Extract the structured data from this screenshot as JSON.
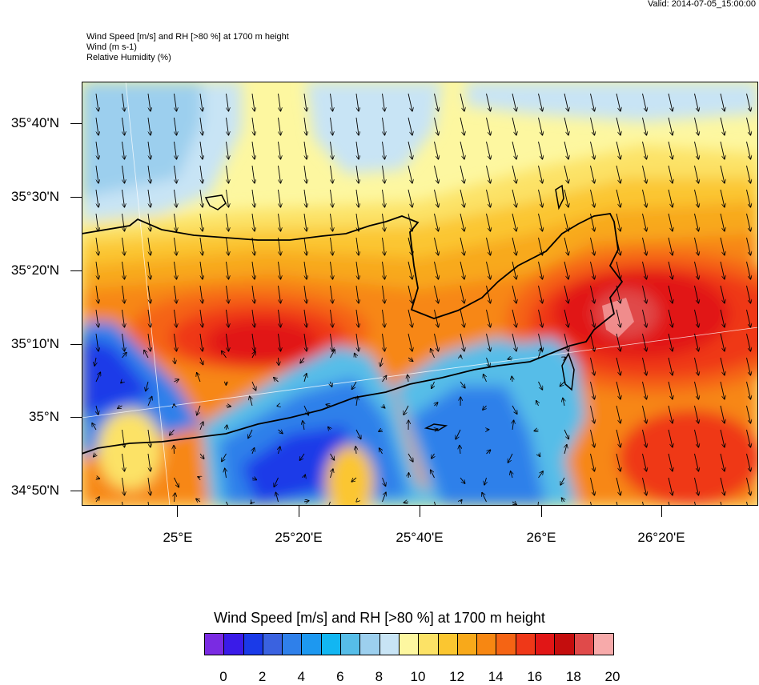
{
  "valid_time": "Valid: 2014-07-05_15:00:00",
  "header": {
    "line1": "Wind Speed [m/s] and RH [>80 %] at 1700 m height",
    "line2": "Wind   (m s-1)",
    "line3": "Relative Humidity   (%)"
  },
  "map": {
    "lat_labels": [
      "35°40'N",
      "35°30'N",
      "35°20'N",
      "35°10'N",
      "35°N",
      "34°50'N"
    ],
    "lon_labels": [
      "25°E",
      "25°20'E",
      "25°40'E",
      "26°E",
      "26°20'E"
    ]
  },
  "colorbar": {
    "title": "Wind Speed [m/s] and RH [>80 %] at 1700 m height",
    "colors": [
      "#7a2be2",
      "#3a1be8",
      "#1a3ae8",
      "#3a62e0",
      "#2f80ea",
      "#1d98f0",
      "#12b6f2",
      "#56bde8",
      "#9ccfee",
      "#c8e4f5",
      "#fdf7a0",
      "#fce266",
      "#fbc630",
      "#f8a91a",
      "#f78712",
      "#f56414",
      "#ef3818",
      "#e11616",
      "#c40d0d",
      "#e04a4a",
      "#f7aaaa"
    ],
    "labels": [
      "0",
      "2",
      "4",
      "6",
      "8",
      "10",
      "12",
      "14",
      "16",
      "18",
      "20"
    ]
  }
}
